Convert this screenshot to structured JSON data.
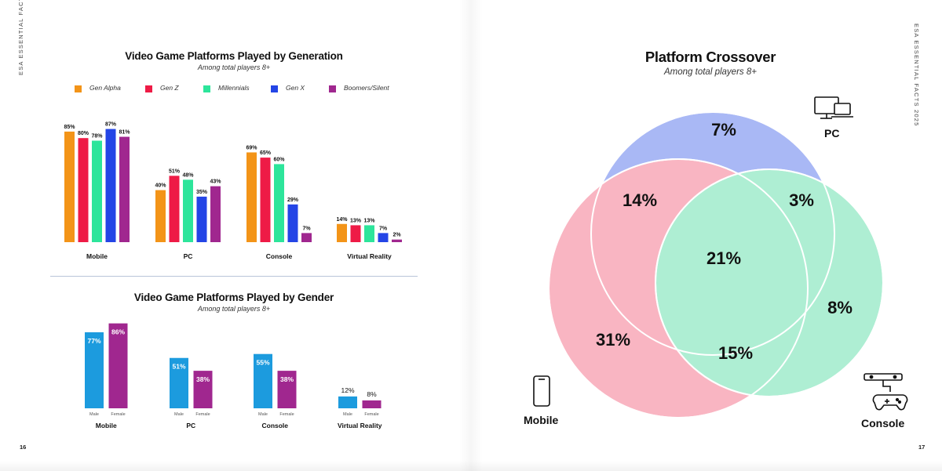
{
  "spine": {
    "left": "ESA ESSENTIAL FACTS 2025",
    "right": "ESA ESSENTIAL FACTS 2025"
  },
  "page_numbers": {
    "left": "16",
    "right": "17"
  },
  "colors": {
    "gen_alpha": "#F39418",
    "gen_z": "#EE1B46",
    "millennials": "#2DE59B",
    "gen_x": "#2445E6",
    "boomers": "#A0278F",
    "male": "#1C9BDE",
    "female": "#A0278F",
    "venn_pc": "#A9B8F5",
    "venn_mobile": "#F9B5C2",
    "venn_console": "#AEEED3"
  },
  "chart_data": [
    {
      "type": "bar",
      "title": "Video Game Platforms Played by Generation",
      "subtitle": "Among total players 8+",
      "categories": [
        "Mobile",
        "PC",
        "Console",
        "Virtual Reality"
      ],
      "series": [
        {
          "name": "Gen Alpha",
          "color": "#F39418",
          "values": [
            85,
            40,
            69,
            14
          ]
        },
        {
          "name": "Gen Z",
          "color": "#EE1B46",
          "values": [
            80,
            51,
            65,
            13
          ]
        },
        {
          "name": "Millennials",
          "color": "#2DE59B",
          "values": [
            78,
            48,
            60,
            13
          ]
        },
        {
          "name": "Gen X",
          "color": "#2445E6",
          "values": [
            87,
            35,
            29,
            7
          ]
        },
        {
          "name": "Boomers/Silent",
          "color": "#A0278F",
          "values": [
            81,
            43,
            7,
            2
          ]
        }
      ],
      "value_suffix": "%",
      "ylim": [
        0,
        100
      ],
      "legend": "top"
    },
    {
      "type": "bar",
      "title": "Video Game Platforms Played by Gender",
      "subtitle": "Among total players 8+",
      "categories": [
        "Mobile",
        "PC",
        "Console",
        "Virtual Reality"
      ],
      "series": [
        {
          "name": "Male",
          "color": "#1C9BDE",
          "values": [
            77,
            51,
            55,
            12
          ]
        },
        {
          "name": "Female",
          "color": "#A0278F",
          "values": [
            86,
            38,
            38,
            8
          ]
        }
      ],
      "value_suffix": "%",
      "ylim": [
        0,
        100
      ]
    },
    {
      "type": "venn",
      "title": "Platform Crossover",
      "subtitle": "Among total players 8+",
      "sets": [
        "PC",
        "Mobile",
        "Console"
      ],
      "regions": [
        {
          "sets": [
            "PC"
          ],
          "value": "7%"
        },
        {
          "sets": [
            "Mobile",
            "PC"
          ],
          "value": "14%"
        },
        {
          "sets": [
            "PC",
            "Console"
          ],
          "value": "3%"
        },
        {
          "sets": [
            "Mobile",
            "PC",
            "Console"
          ],
          "value": "21%"
        },
        {
          "sets": [
            "Console"
          ],
          "value": "8%"
        },
        {
          "sets": [
            "Mobile"
          ],
          "value": "31%"
        },
        {
          "sets": [
            "Mobile",
            "Console"
          ],
          "value": "15%"
        }
      ]
    }
  ]
}
